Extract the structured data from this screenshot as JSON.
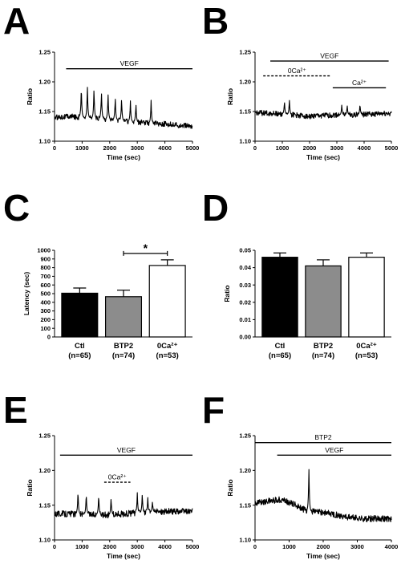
{
  "panels": {
    "A": {
      "letter": "A"
    },
    "B": {
      "letter": "B"
    },
    "C": {
      "letter": "C"
    },
    "D": {
      "letter": "D"
    },
    "E": {
      "letter": "E"
    },
    "F": {
      "letter": "F"
    }
  },
  "chart_data": [
    {
      "panel": "A",
      "type": "line",
      "xlabel": "Time (sec)",
      "ylabel": "Ratio",
      "xlim": [
        0,
        5000
      ],
      "ylim": [
        1.1,
        1.25
      ],
      "xticks": [
        0,
        1000,
        2000,
        3000,
        4000,
        5000
      ],
      "yticks": [
        "1.10",
        "1.15",
        "1.20",
        "1.25"
      ],
      "baseline": [
        [
          0,
          1.14
        ],
        [
          500,
          1.142
        ],
        [
          1000,
          1.14
        ],
        [
          2000,
          1.137
        ],
        [
          3000,
          1.132
        ],
        [
          4000,
          1.129
        ],
        [
          5000,
          1.125
        ]
      ],
      "peaks": [
        [
          970,
          1.194
        ],
        [
          1190,
          1.192
        ],
        [
          1430,
          1.188
        ],
        [
          1700,
          1.185
        ],
        [
          1940,
          1.179
        ],
        [
          2200,
          1.175
        ],
        [
          2430,
          1.171
        ],
        [
          2750,
          1.168
        ],
        [
          2950,
          1.164
        ],
        [
          3500,
          1.169
        ]
      ],
      "annotations": [
        {
          "label": "VEGF",
          "x_start": 420,
          "x_end": 5000,
          "y": 1.222
        }
      ]
    },
    {
      "panel": "B",
      "type": "line",
      "xlabel": "Time (sec)",
      "ylabel": "Ratio",
      "xlim": [
        0,
        5000
      ],
      "ylim": [
        1.1,
        1.25
      ],
      "xticks": [
        0,
        1000,
        2000,
        3000,
        4000,
        5000
      ],
      "yticks": [
        "1.10",
        "1.15",
        "1.20",
        "1.25"
      ],
      "baseline": [
        [
          0,
          1.148
        ],
        [
          1000,
          1.146
        ],
        [
          2000,
          1.142
        ],
        [
          3000,
          1.144
        ],
        [
          4000,
          1.145
        ],
        [
          5000,
          1.147
        ]
      ],
      "peaks": [
        [
          1080,
          1.168
        ],
        [
          1260,
          1.171
        ],
        [
          3180,
          1.162
        ],
        [
          3380,
          1.16
        ],
        [
          3850,
          1.163
        ]
      ],
      "annotations": [
        {
          "label": "VEGF",
          "x_start": 560,
          "x_end": 4900,
          "y": 1.235
        },
        {
          "label": "0Ca²⁺",
          "x_start": 300,
          "x_end": 2780,
          "y": 1.21,
          "dashed": true
        },
        {
          "label": "Ca²⁺",
          "x_start": 2850,
          "x_end": 4800,
          "y": 1.19
        }
      ]
    },
    {
      "panel": "C",
      "type": "bar",
      "ylabel": "Latency (sec)",
      "ylim": [
        0,
        1000
      ],
      "yticks": [
        "0",
        "100",
        "200",
        "300",
        "400",
        "500",
        "600",
        "700",
        "800",
        "900",
        "1000"
      ],
      "categories": [
        "Ctl",
        "BTP2",
        "0Ca²⁺"
      ],
      "counts": [
        "(n=65)",
        "(n=74)",
        "(n=53)"
      ],
      "values": [
        505,
        465,
        825
      ],
      "errors": [
        60,
        75,
        65
      ],
      "fills": [
        "#000000",
        "#8c8c8c",
        "#ffffff"
      ],
      "significance": {
        "from": 1,
        "to": 2,
        "label": "*"
      }
    },
    {
      "panel": "D",
      "type": "bar",
      "ylabel": "Ratio",
      "ylim": [
        0,
        0.05
      ],
      "yticks": [
        "0.00",
        "0.01",
        "0.02",
        "0.03",
        "0.04",
        "0.05"
      ],
      "categories": [
        "Ctl",
        "BTP2",
        "0Ca²⁺"
      ],
      "counts": [
        "(n=65)",
        "(n=74)",
        "(n=53)"
      ],
      "values": [
        0.046,
        0.041,
        0.046
      ],
      "errors": [
        0.0025,
        0.0035,
        0.0025
      ],
      "fills": [
        "#000000",
        "#8c8c8c",
        "#ffffff"
      ]
    },
    {
      "panel": "E",
      "type": "line",
      "xlabel": "Time (sec)",
      "ylabel": "Ratio",
      "xlim": [
        0,
        5000
      ],
      "ylim": [
        1.1,
        1.25
      ],
      "xticks": [
        0,
        1000,
        2000,
        3000,
        4000,
        5000
      ],
      "yticks": [
        "1.10",
        "1.15",
        "1.20",
        "1.25"
      ],
      "baseline": [
        [
          0,
          1.138
        ],
        [
          1000,
          1.137
        ],
        [
          2000,
          1.136
        ],
        [
          3000,
          1.139
        ],
        [
          4000,
          1.141
        ],
        [
          5000,
          1.141
        ]
      ],
      "peaks": [
        [
          850,
          1.172
        ],
        [
          1150,
          1.168
        ],
        [
          1600,
          1.166
        ],
        [
          2050,
          1.161
        ],
        [
          3000,
          1.168
        ],
        [
          3180,
          1.166
        ],
        [
          3380,
          1.162
        ],
        [
          3550,
          1.156
        ]
      ],
      "annotations": [
        {
          "label": "VEGF",
          "x_start": 200,
          "x_end": 5000,
          "y": 1.222
        },
        {
          "label": "0Ca²⁺",
          "x_start": 1800,
          "x_end": 2750,
          "y": 1.183,
          "dashed": true
        }
      ]
    },
    {
      "panel": "F",
      "type": "line",
      "xlabel": "Time (sec)",
      "ylabel": "Ratio",
      "xlim": [
        0,
        4000
      ],
      "ylim": [
        1.1,
        1.25
      ],
      "xticks": [
        0,
        1000,
        2000,
        3000,
        4000
      ],
      "yticks": [
        "1.10",
        "1.15",
        "1.20",
        "1.25"
      ],
      "baseline": [
        [
          0,
          1.153
        ],
        [
          400,
          1.156
        ],
        [
          800,
          1.158
        ],
        [
          1200,
          1.15
        ],
        [
          1500,
          1.142
        ],
        [
          1800,
          1.14
        ],
        [
          2200,
          1.138
        ],
        [
          2700,
          1.133
        ],
        [
          3200,
          1.13
        ],
        [
          3600,
          1.131
        ],
        [
          4000,
          1.13
        ]
      ],
      "peaks": [
        [
          1580,
          1.205
        ]
      ],
      "annotations": [
        {
          "label": "BTP2",
          "x_start": 0,
          "x_end": 4000,
          "y": 1.24
        },
        {
          "label": "VEGF",
          "x_start": 650,
          "x_end": 4000,
          "y": 1.222
        }
      ]
    }
  ]
}
